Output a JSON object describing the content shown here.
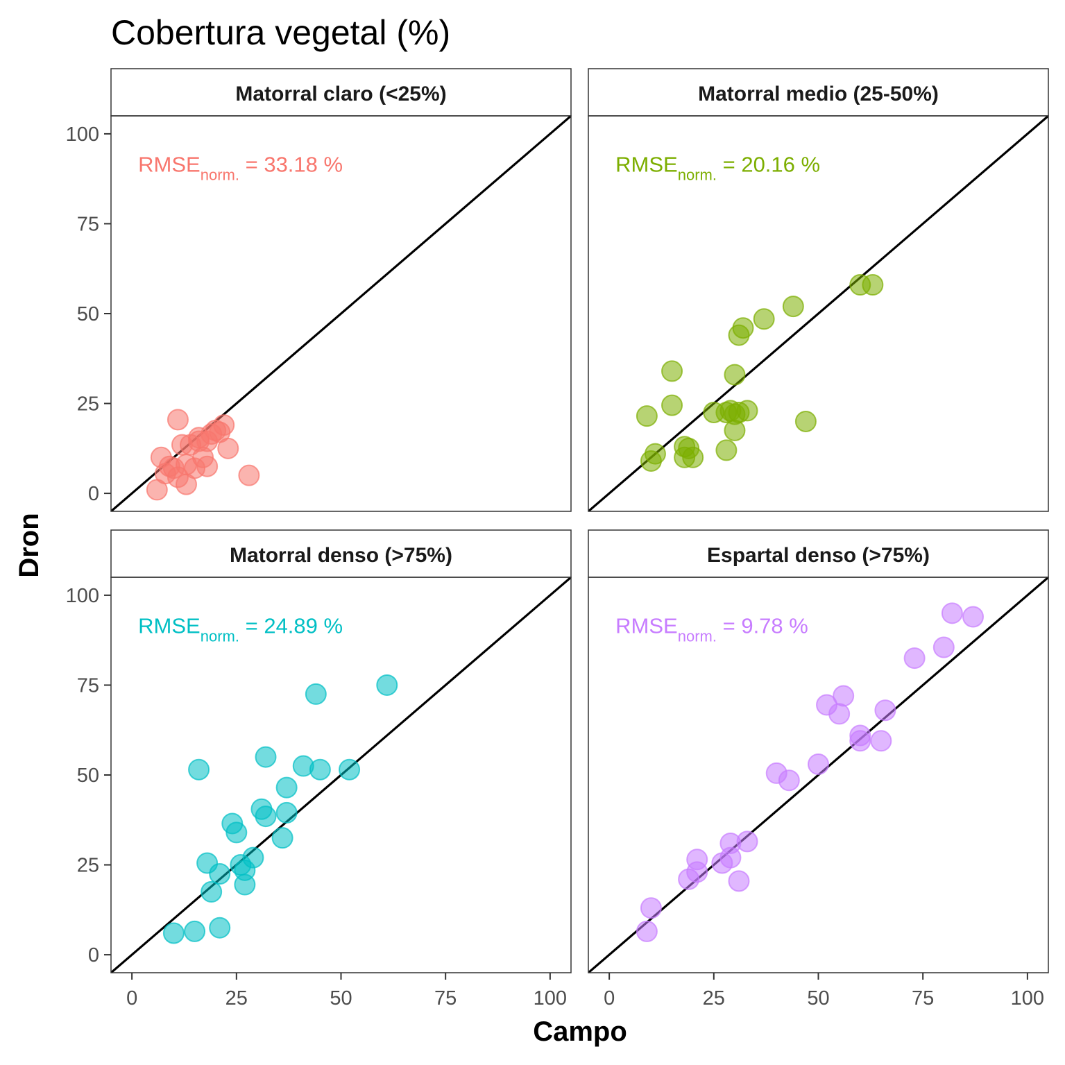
{
  "chart_data": {
    "type": "scatter",
    "title": "Cobertura vegetal (%)",
    "xlabel": "Campo",
    "ylabel": "Dron",
    "xlim": [
      -5,
      105
    ],
    "ylim": [
      -5,
      105
    ],
    "x_ticks": [
      0,
      25,
      50,
      75,
      100
    ],
    "y_ticks": [
      0,
      25,
      50,
      75,
      100
    ],
    "reference_line": "y = x",
    "grid": false,
    "point_opacity": 0.55,
    "facets": [
      {
        "label": "Matorral claro (<25%)",
        "color": "#F8766D",
        "metric": {
          "base": "RMSE",
          "sub": "norm.",
          "value_text": " = 33.18 %"
        },
        "points": [
          [
            6,
            1
          ],
          [
            7,
            10
          ],
          [
            8,
            5.5
          ],
          [
            9,
            7.5
          ],
          [
            10,
            7
          ],
          [
            11,
            4.5
          ],
          [
            11,
            20.5
          ],
          [
            12,
            13.5
          ],
          [
            13,
            2.5
          ],
          [
            13,
            8
          ],
          [
            14,
            13.5
          ],
          [
            15,
            7
          ],
          [
            16,
            14.5
          ],
          [
            16,
            15.5
          ],
          [
            17,
            10
          ],
          [
            18,
            14.5
          ],
          [
            18,
            7.5
          ],
          [
            19,
            16.5
          ],
          [
            20,
            17.5
          ],
          [
            21,
            17
          ],
          [
            22,
            19
          ],
          [
            23,
            12.5
          ],
          [
            28,
            5
          ]
        ]
      },
      {
        "label": "Matorral medio (25-50%)",
        "color": "#7CAE00",
        "metric": {
          "base": "RMSE",
          "sub": "norm.",
          "value_text": " = 20.16 %"
        },
        "points": [
          [
            9,
            21.5
          ],
          [
            10,
            9
          ],
          [
            11,
            11
          ],
          [
            15,
            34
          ],
          [
            15,
            24.5
          ],
          [
            18,
            10
          ],
          [
            18,
            13
          ],
          [
            19,
            12.5
          ],
          [
            20,
            10
          ],
          [
            25,
            22.5
          ],
          [
            28,
            22.5
          ],
          [
            28,
            12
          ],
          [
            29,
            23
          ],
          [
            30,
            17.5
          ],
          [
            30,
            33
          ],
          [
            30,
            22
          ],
          [
            31,
            44
          ],
          [
            32,
            46
          ],
          [
            31,
            22.5
          ],
          [
            33,
            23
          ],
          [
            37,
            48.5
          ],
          [
            44,
            52
          ],
          [
            47,
            20
          ],
          [
            60,
            58
          ],
          [
            63,
            58
          ]
        ]
      },
      {
        "label": "Matorral denso (>75%)",
        "color": "#00BFC4",
        "metric": {
          "base": "RMSE",
          "sub": "norm.",
          "value_text": " = 24.89 %"
        },
        "points": [
          [
            10,
            6
          ],
          [
            15,
            6.5
          ],
          [
            16,
            51.5
          ],
          [
            18,
            25.5
          ],
          [
            19,
            17.5
          ],
          [
            21,
            22.5
          ],
          [
            21,
            7.5
          ],
          [
            24,
            36.5
          ],
          [
            25,
            34
          ],
          [
            26,
            25
          ],
          [
            27,
            23.5
          ],
          [
            27,
            19.5
          ],
          [
            29,
            27
          ],
          [
            31,
            40.5
          ],
          [
            32,
            38.5
          ],
          [
            32,
            55
          ],
          [
            36,
            32.5
          ],
          [
            37,
            46.5
          ],
          [
            37,
            39.5
          ],
          [
            41,
            52.5
          ],
          [
            44,
            72.5
          ],
          [
            45,
            51.5
          ],
          [
            52,
            51.5
          ],
          [
            61,
            75
          ]
        ]
      },
      {
        "label": "Espartal denso (>75%)",
        "color": "#C77CFF",
        "metric": {
          "base": "RMSE",
          "sub": "norm.",
          "value_text": " = 9.78 %"
        },
        "points": [
          [
            9,
            6.5
          ],
          [
            10,
            13
          ],
          [
            19,
            21
          ],
          [
            21,
            26.5
          ],
          [
            21,
            23
          ],
          [
            27,
            25.5
          ],
          [
            29,
            31
          ],
          [
            29,
            27
          ],
          [
            31,
            20.5
          ],
          [
            33,
            31.5
          ],
          [
            40,
            50.5
          ],
          [
            43,
            48.5
          ],
          [
            50,
            53
          ],
          [
            52,
            69.5
          ],
          [
            55,
            67
          ],
          [
            56,
            72
          ],
          [
            60,
            61
          ],
          [
            60,
            59.5
          ],
          [
            65,
            59.5
          ],
          [
            66,
            68
          ],
          [
            73,
            82.5
          ],
          [
            80,
            85.5
          ],
          [
            82,
            95
          ],
          [
            87,
            94
          ]
        ]
      }
    ]
  }
}
